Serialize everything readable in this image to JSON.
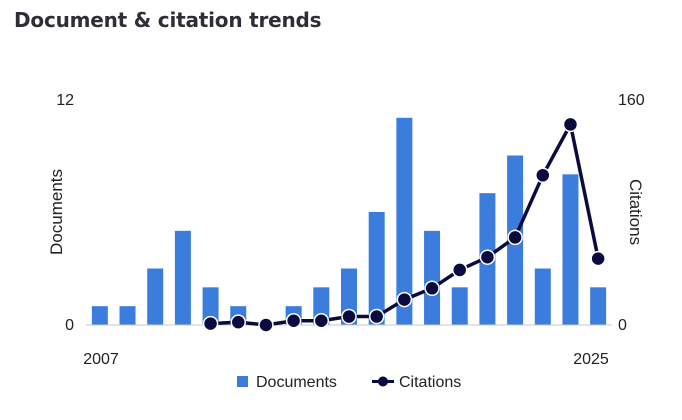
{
  "title": "Document & citation trends",
  "chart_data": {
    "type": "bar",
    "categories": [
      "2007",
      "2008",
      "2009",
      "2010",
      "2011",
      "2012",
      "2013",
      "2014",
      "2015",
      "2016",
      "2017",
      "2018",
      "2019",
      "2020",
      "2021",
      "2022",
      "2023",
      "2024",
      "2025"
    ],
    "series": [
      {
        "name": "Documents",
        "type": "bar",
        "axis": "left",
        "color": "#3b7ddd",
        "values": [
          1,
          1,
          3,
          5,
          2,
          1,
          0,
          1,
          2,
          3,
          6,
          11,
          5,
          2,
          7,
          9,
          3,
          8,
          2
        ]
      },
      {
        "name": "Citations",
        "type": "line",
        "axis": "right",
        "color": "#0c0b3f",
        "values": [
          null,
          null,
          null,
          null,
          1,
          2,
          0,
          3,
          3,
          6,
          6,
          18,
          26,
          39,
          48,
          62,
          106,
          142,
          47
        ]
      }
    ],
    "x_tick_labels": [
      "2007",
      "2025"
    ],
    "ylabel_left": "Documents",
    "ylabel_right": "Citations",
    "ylim_left": [
      0,
      12
    ],
    "ylim_right": [
      0,
      160
    ],
    "left_tick_labels": [
      "0",
      "12"
    ],
    "right_tick_labels": [
      "0",
      "160"
    ],
    "grid": false,
    "legend_position": "bottom"
  }
}
